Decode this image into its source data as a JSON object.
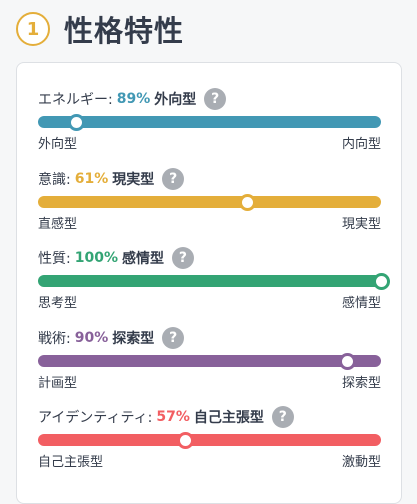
{
  "header": {
    "number": "1",
    "title": "性格特性"
  },
  "help_icon": "?",
  "traits": [
    {
      "label": "エネルギー:",
      "percent": {
        "value": 89,
        "label": "89%"
      },
      "type": "外向型",
      "side": "left",
      "left": "外向型",
      "right": "内向型",
      "color": "#4298b4"
    },
    {
      "label": "意識:",
      "percent": {
        "value": 61,
        "label": "61%"
      },
      "type": "現実型",
      "side": "right",
      "left": "直感型",
      "right": "現実型",
      "color": "#e4ae3a"
    },
    {
      "label": "性質:",
      "percent": {
        "value": 100,
        "label": "100%"
      },
      "type": "感情型",
      "side": "right",
      "left": "思考型",
      "right": "感情型",
      "color": "#33a474"
    },
    {
      "label": "戦術:",
      "percent": {
        "value": 90,
        "label": "90%"
      },
      "type": "探索型",
      "side": "right",
      "left": "計画型",
      "right": "探索型",
      "color": "#88619a"
    },
    {
      "label": "アイデンティティ:",
      "percent": {
        "value": 57,
        "label": "57%"
      },
      "type": "自己主張型",
      "side": "left",
      "left": "自己主張型",
      "right": "激動型",
      "color": "#f25e62"
    }
  ]
}
